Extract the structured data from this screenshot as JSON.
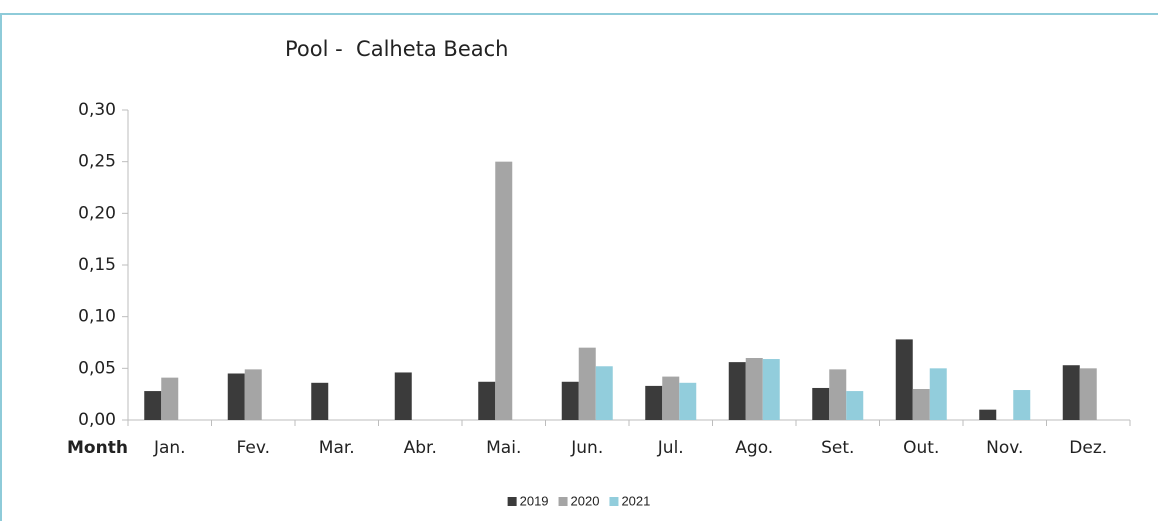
{
  "chart_data": {
    "type": "bar",
    "title": "Pool -  Calheta Beach",
    "x_label": "Month",
    "categories": [
      "Jan.",
      "Fev.",
      "Mar.",
      "Abr.",
      "Mai.",
      "Jun.",
      "Jul.",
      "Ago.",
      "Set.",
      "Out.",
      "Nov.",
      "Dez."
    ],
    "series": [
      {
        "name": "2019",
        "color": "#3b3b3b",
        "values": [
          0.028,
          0.045,
          0.036,
          0.046,
          0.037,
          0.037,
          0.033,
          0.056,
          0.031,
          0.078,
          0.01,
          0.053
        ]
      },
      {
        "name": "2020",
        "color": "#a5a5a5",
        "values": [
          0.041,
          0.049,
          null,
          null,
          0.25,
          0.07,
          0.042,
          0.06,
          0.049,
          0.03,
          null,
          0.05
        ]
      },
      {
        "name": "2021",
        "color": "#92cddc",
        "values": [
          null,
          null,
          null,
          null,
          null,
          0.052,
          0.036,
          0.059,
          0.028,
          0.05,
          0.029,
          null
        ]
      }
    ],
    "ylim": [
      0,
      0.3
    ],
    "yticks": [
      {
        "value": 0,
        "label": "0,00"
      },
      {
        "value": 0.05,
        "label": "0,05"
      },
      {
        "value": 0.1,
        "label": "0,10"
      },
      {
        "value": 0.15,
        "label": "0,15"
      },
      {
        "value": 0.2,
        "label": "0,20"
      },
      {
        "value": 0.25,
        "label": "0,25"
      },
      {
        "value": 0.3,
        "label": "0,30"
      }
    ],
    "legend": "bottom"
  }
}
